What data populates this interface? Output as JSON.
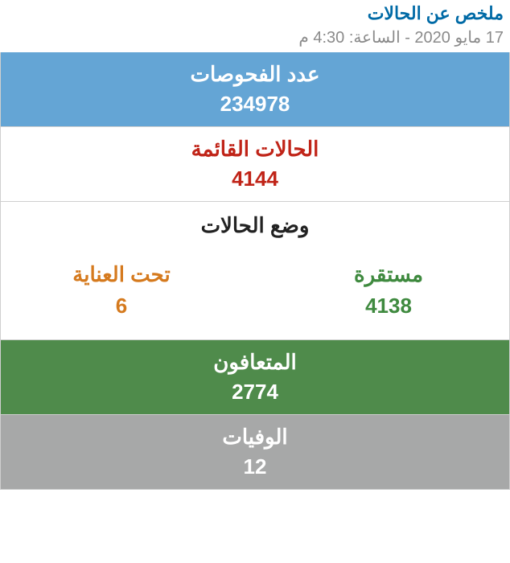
{
  "colors": {
    "title": "#006aa6",
    "timestamp": "#8a8a8a",
    "border": "#cfcfcf",
    "tests_bg": "#64a5d5",
    "tests_text": "#ffffff",
    "active_bg": "#ffffff",
    "active_text": "#c02418",
    "status_title": "#222222",
    "stable_text": "#3f8a3f",
    "icu_text": "#d57a1e",
    "recovered_bg": "#4f8b4b",
    "recovered_text": "#ffffff",
    "deaths_bg": "#a7a8a8",
    "deaths_text": "#ffffff"
  },
  "header": {
    "title": "ملخص عن الحالات",
    "timestamp": "17 مايو 2020 - الساعة: 4:30 م"
  },
  "tests": {
    "label": "عدد الفحوصات",
    "value": "234978"
  },
  "active": {
    "label": "الحالات القائمة",
    "value": "4144"
  },
  "status": {
    "title": "وضع الحالات",
    "stable": {
      "label": "مستقرة",
      "value": "4138"
    },
    "icu": {
      "label": "تحت العناية",
      "value": "6"
    }
  },
  "recovered": {
    "label": "المتعافون",
    "value": "2774"
  },
  "deaths": {
    "label": "الوفيات",
    "value": "12"
  }
}
